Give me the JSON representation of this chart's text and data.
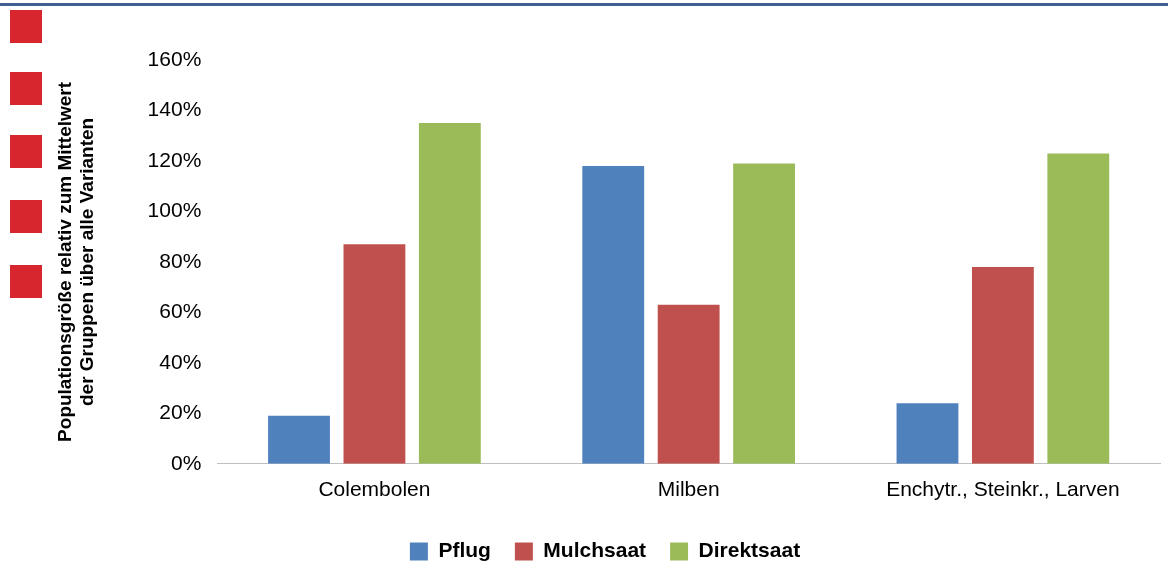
{
  "chart_data": {
    "type": "bar",
    "ylabel": "Populationsgröße relativ zum Mittelwert\nder Gruppen über alle Varianten",
    "categories": [
      "Colembolen",
      "Milben",
      "Enchytr., Steinkr., Larven"
    ],
    "series": [
      {
        "name": "Pflug",
        "color": "#4f81bd",
        "values": [
          19,
          118,
          24
        ]
      },
      {
        "name": "Mulchsaat",
        "color": "#c0504d",
        "values": [
          87,
          63,
          78
        ]
      },
      {
        "name": "Direktsaat",
        "color": "#9bbb59",
        "values": [
          135,
          119,
          123
        ]
      }
    ],
    "ylim": [
      0,
      160
    ],
    "yticks": [
      {
        "value": 0,
        "label": "0%"
      },
      {
        "value": 20,
        "label": "20%"
      },
      {
        "value": 40,
        "label": "40%"
      },
      {
        "value": 60,
        "label": "60%"
      },
      {
        "value": 80,
        "label": "80%"
      },
      {
        "value": 100,
        "label": "100%"
      },
      {
        "value": 120,
        "label": "120%"
      },
      {
        "value": 140,
        "label": "140%"
      },
      {
        "value": 160,
        "label": "160%"
      }
    ],
    "grid": false,
    "legend": "bottom"
  }
}
